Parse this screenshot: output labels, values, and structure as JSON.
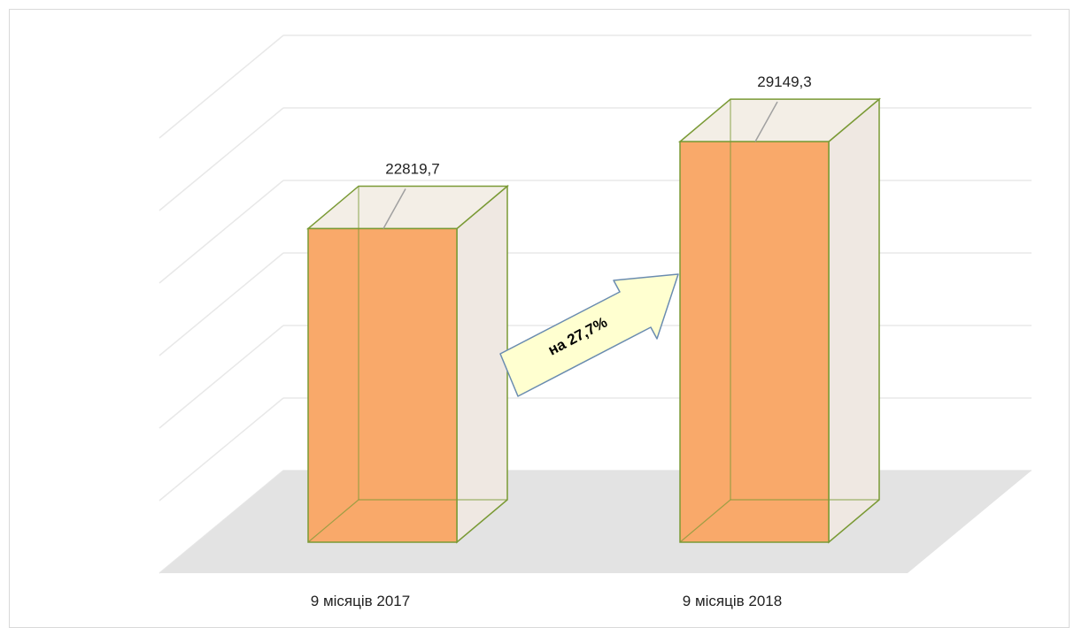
{
  "chart_data": {
    "type": "bar",
    "style": "3d-column",
    "categories": [
      "9 місяців 2017",
      "9 місяців 2018"
    ],
    "values": [
      22819.7,
      29149.3
    ],
    "value_labels": [
      "22819,7",
      "29149,3"
    ],
    "ylim": [
      0,
      35000
    ],
    "grid": true,
    "legend": "none",
    "annotation": "на 27,7%"
  },
  "colors": {
    "bar_front": "#F9A96A",
    "bar_side": "#EFE8E2",
    "bar_edge": "#7A9A35",
    "floor": "#E3E3E3",
    "grid": "#E8E8E8",
    "arrow_fill": "#FFFFD0",
    "arrow_edge": "#6A8CB0",
    "leader": "#A0A0A0"
  }
}
